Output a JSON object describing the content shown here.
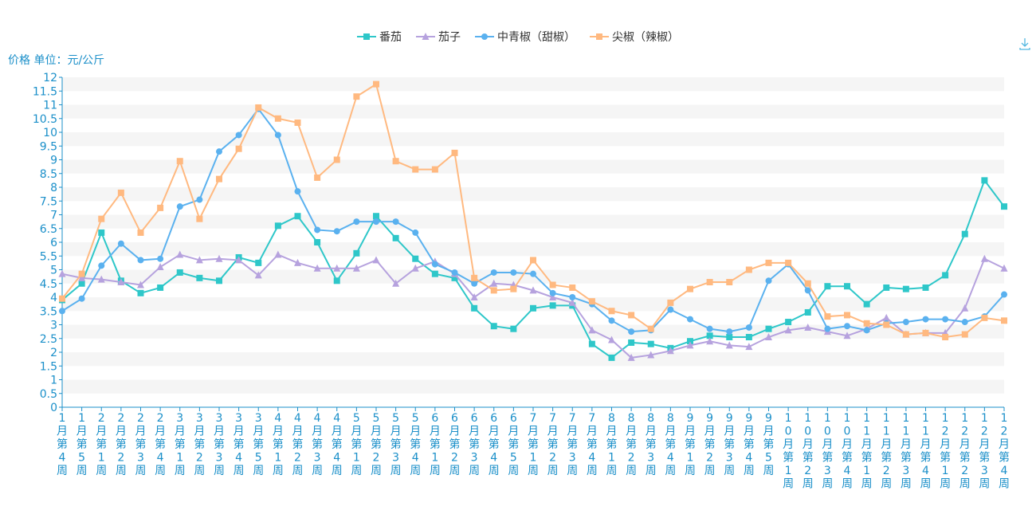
{
  "colors": {
    "axis": "#1a8fc9",
    "band_light": "#f5f5f5",
    "band_white": "#ffffff"
  },
  "toolbox": {
    "icon": "download-icon"
  },
  "chart_data": {
    "type": "line",
    "title": "",
    "ylabel": "价格 单位：元/公斤",
    "xlabel": "",
    "ylim": [
      0,
      12
    ],
    "ytick_step": 0.5,
    "legend_position": "top-center",
    "grid": "alternating-horizontal-bands",
    "categories": [
      "1月第4周",
      "1月第5周",
      "2月第1周",
      "2月第2周",
      "2月第3周",
      "2月第4周",
      "3月第1周",
      "3月第2周",
      "3月第3周",
      "3月第4周",
      "3月第5周",
      "4月第1周",
      "4月第2周",
      "4月第3周",
      "4月第4周",
      "5月第1周",
      "5月第2周",
      "5月第3周",
      "5月第4周",
      "6月第1周",
      "6月第2周",
      "6月第3周",
      "6月第4周",
      "6月第5周",
      "7月第1周",
      "7月第2周",
      "7月第3周",
      "7月第4周",
      "8月第1周",
      "8月第2周",
      "8月第3周",
      "8月第4周",
      "9月第1周",
      "9月第2周",
      "9月第3周",
      "9月第4周",
      "9月第5周",
      "10月第1周",
      "10月第2周",
      "10月第3周",
      "10月第4周",
      "11月第1周",
      "11月第2周",
      "11月第3周",
      "11月第4周",
      "12月第1周",
      "12月第2周",
      "12月第3周",
      "12月第4周"
    ],
    "series": [
      {
        "name": "番茄",
        "color": "#2ec7c9",
        "marker": "square",
        "values": [
          3.9,
          4.5,
          6.35,
          4.6,
          4.15,
          4.35,
          4.9,
          4.7,
          4.6,
          5.45,
          5.25,
          6.6,
          6.95,
          6.0,
          4.6,
          5.6,
          6.95,
          6.15,
          5.4,
          4.85,
          4.7,
          3.6,
          2.95,
          2.85,
          3.6,
          3.7,
          3.7,
          2.3,
          1.8,
          2.35,
          2.3,
          2.15,
          2.4,
          2.6,
          2.55,
          2.55,
          2.85,
          3.1,
          3.45,
          4.4,
          4.4,
          3.75,
          4.35,
          4.3,
          4.35,
          4.8,
          6.3,
          8.25,
          7.3
        ]
      },
      {
        "name": "茄子",
        "color": "#b6a2de",
        "marker": "triangle",
        "values": [
          4.85,
          4.7,
          4.65,
          4.55,
          4.45,
          5.1,
          5.55,
          5.35,
          5.4,
          5.35,
          4.8,
          5.55,
          5.25,
          5.05,
          5.05,
          5.05,
          5.35,
          4.5,
          5.05,
          5.3,
          4.85,
          4.0,
          4.5,
          4.45,
          4.25,
          4.0,
          3.8,
          2.8,
          2.45,
          1.8,
          1.9,
          2.05,
          2.25,
          2.4,
          2.25,
          2.2,
          2.55,
          2.8,
          2.9,
          2.75,
          2.6,
          2.85,
          3.25,
          2.65,
          2.7,
          2.7,
          3.6,
          5.4,
          5.05
        ]
      },
      {
        "name": "中青椒（甜椒）",
        "color": "#5ab1ef",
        "marker": "circle",
        "values": [
          3.5,
          3.95,
          5.15,
          5.95,
          5.35,
          5.4,
          7.3,
          7.55,
          9.3,
          9.9,
          10.85,
          9.9,
          7.85,
          6.45,
          6.4,
          6.75,
          6.75,
          6.75,
          6.35,
          5.2,
          4.9,
          4.5,
          4.9,
          4.9,
          4.85,
          4.15,
          4.0,
          3.75,
          3.15,
          2.75,
          2.8,
          3.55,
          3.2,
          2.85,
          2.75,
          2.9,
          4.6,
          5.2,
          4.25,
          2.85,
          2.95,
          2.8,
          3.05,
          3.1,
          3.2,
          3.2,
          3.1,
          3.3,
          4.1
        ]
      },
      {
        "name": "尖椒（辣椒）",
        "color": "#ffb980",
        "marker": "square",
        "values": [
          3.95,
          4.85,
          6.85,
          7.8,
          6.35,
          7.25,
          8.95,
          6.85,
          8.3,
          9.4,
          10.9,
          10.5,
          10.35,
          8.35,
          9.0,
          11.3,
          11.75,
          8.95,
          8.65,
          8.65,
          9.25,
          4.7,
          4.25,
          4.3,
          5.35,
          4.45,
          4.35,
          3.85,
          3.5,
          3.35,
          2.85,
          3.8,
          4.3,
          4.55,
          4.55,
          5.0,
          5.25,
          5.25,
          4.5,
          3.3,
          3.35,
          3.05,
          3.0,
          2.65,
          2.7,
          2.55,
          2.65,
          3.25,
          3.15
        ]
      }
    ]
  }
}
